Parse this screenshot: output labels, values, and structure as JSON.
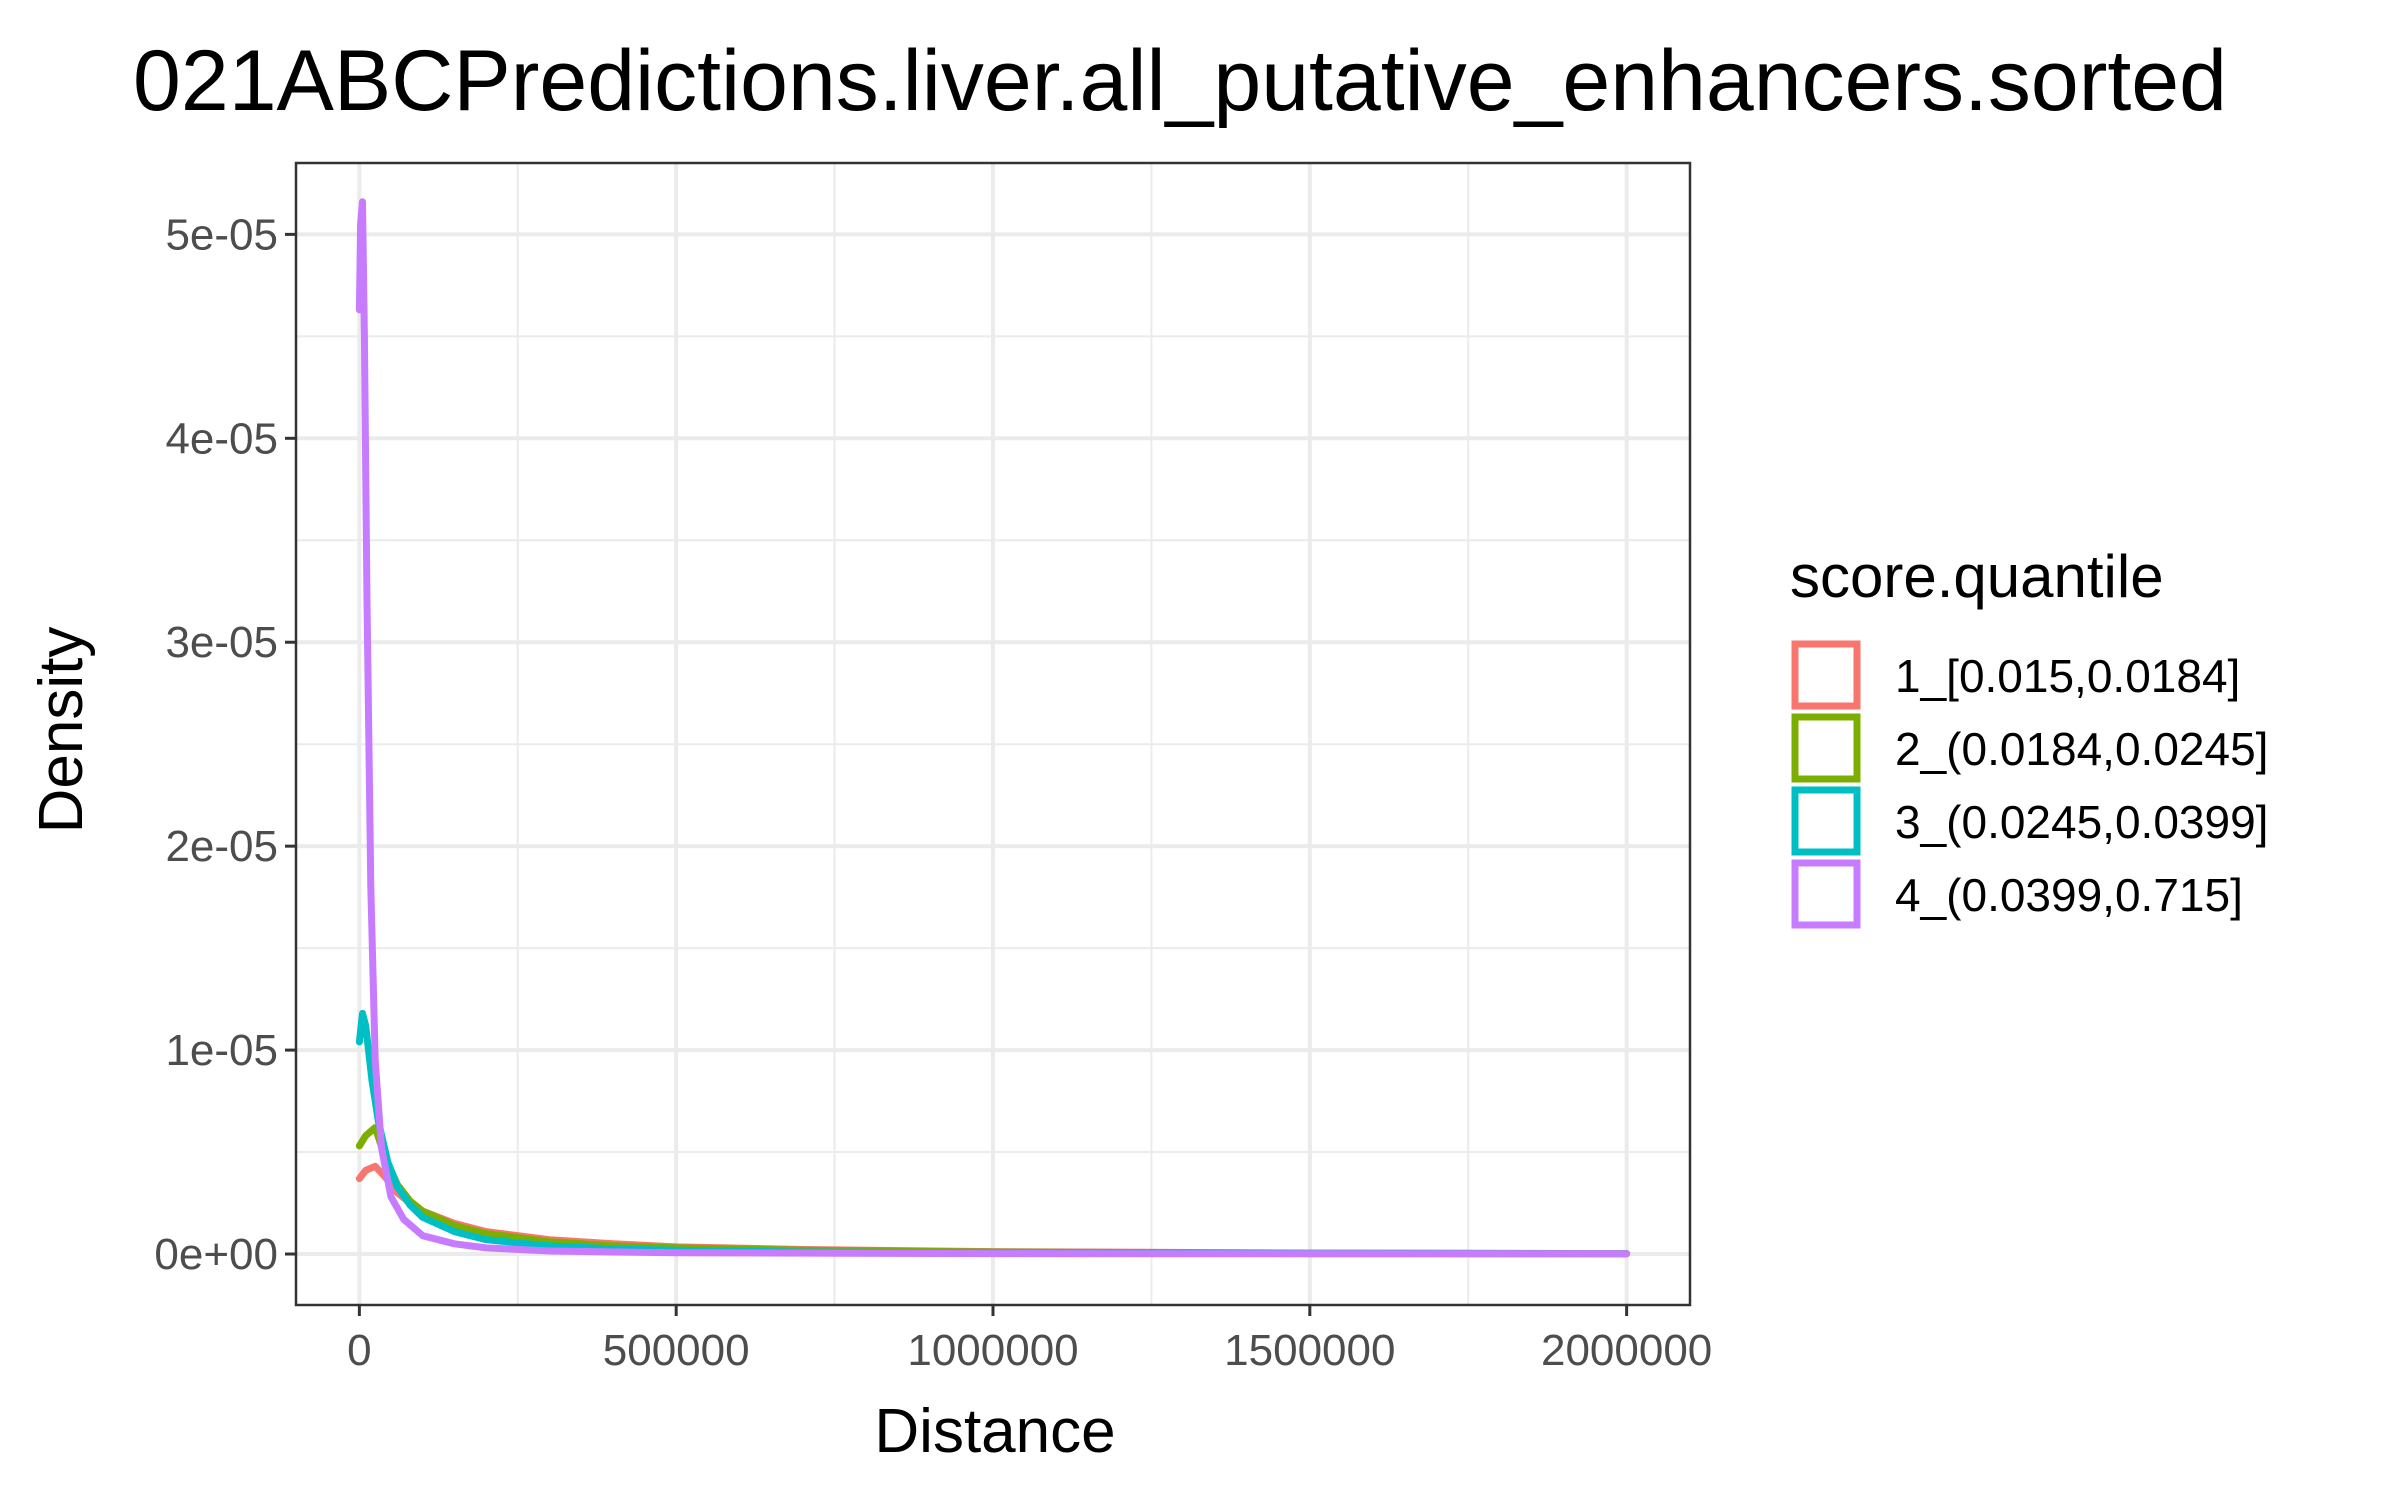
{
  "chart_data": {
    "type": "line",
    "title": "021ABCPredictions.liver.all_putative_enhancers.sorted",
    "xlabel": "Distance",
    "ylabel": "Density",
    "xlim": [
      -100000,
      2100000
    ],
    "ylim": [
      -2.5e-06,
      5.35e-05
    ],
    "x_ticks": [
      0,
      500000,
      1000000,
      1500000,
      2000000
    ],
    "x_tick_labels": [
      "0",
      "500000",
      "1000000",
      "1500000",
      "2000000"
    ],
    "y_ticks": [
      0,
      1e-05,
      2e-05,
      3e-05,
      4e-05,
      5e-05
    ],
    "y_tick_labels": [
      "0e+00",
      "1e-05",
      "2e-05",
      "3e-05",
      "4e-05",
      "5e-05"
    ],
    "grid": true,
    "legend": {
      "title": "score.quantile",
      "position": "right"
    },
    "series": [
      {
        "name": "1_[0.015,0.0184]",
        "color": "#F8766D",
        "x": [
          0,
          10000,
          25000,
          40000,
          60000,
          80000,
          100000,
          150000,
          200000,
          300000,
          400000,
          500000,
          700000,
          1000000,
          1500000,
          2000000
        ],
        "y": [
          3.7e-06,
          4.1e-06,
          4.3e-06,
          3.8e-06,
          3e-06,
          2.5e-06,
          2.1e-06,
          1.5e-06,
          1.1e-06,
          7e-07,
          5e-07,
          3.5e-07,
          2.2e-07,
          1.2e-07,
          5e-08,
          2e-08
        ]
      },
      {
        "name": "2_(0.0184,0.0245]",
        "color": "#7CAE00",
        "x": [
          0,
          10000,
          25000,
          40000,
          60000,
          80000,
          100000,
          150000,
          200000,
          300000,
          400000,
          500000,
          700000,
          1000000,
          1500000,
          2000000
        ],
        "y": [
          5.3e-06,
          5.8e-06,
          6.2e-06,
          4.8e-06,
          3.4e-06,
          2.6e-06,
          2.1e-06,
          1.4e-06,
          1e-06,
          6e-07,
          4e-07,
          3e-07,
          1.8e-07,
          1e-07,
          4e-08,
          2e-08
        ]
      },
      {
        "name": "3_(0.0245,0.0399]",
        "color": "#00BFC4",
        "x": [
          0,
          5000,
          10000,
          20000,
          30000,
          45000,
          60000,
          80000,
          100000,
          150000,
          200000,
          300000,
          400000,
          500000,
          700000,
          1000000,
          1500000,
          2000000
        ],
        "y": [
          1.04e-05,
          1.18e-05,
          1.12e-05,
          8.5e-06,
          6.5e-06,
          4.5e-06,
          3.3e-06,
          2.4e-06,
          1.8e-06,
          1.1e-06,
          7e-07,
          4e-07,
          2.5e-07,
          1.8e-07,
          1e-07,
          5e-08,
          2e-08,
          1e-08
        ]
      },
      {
        "name": "4_(0.0399,0.715]",
        "color": "#C77CFF",
        "x": [
          0,
          2000,
          5000,
          8000,
          12000,
          18000,
          25000,
          35000,
          50000,
          70000,
          100000,
          150000,
          200000,
          300000,
          500000,
          1000000,
          1500000,
          2000000
        ],
        "y": [
          4.63e-05,
          5.05e-05,
          5.16e-05,
          4.5e-05,
          3.2e-05,
          1.8e-05,
          9.5e-06,
          5.2e-06,
          2.8e-06,
          1.7e-06,
          9e-07,
          5e-07,
          3e-07,
          1.5e-07,
          6e-08,
          2e-08,
          1e-08,
          1e-08
        ]
      }
    ]
  }
}
